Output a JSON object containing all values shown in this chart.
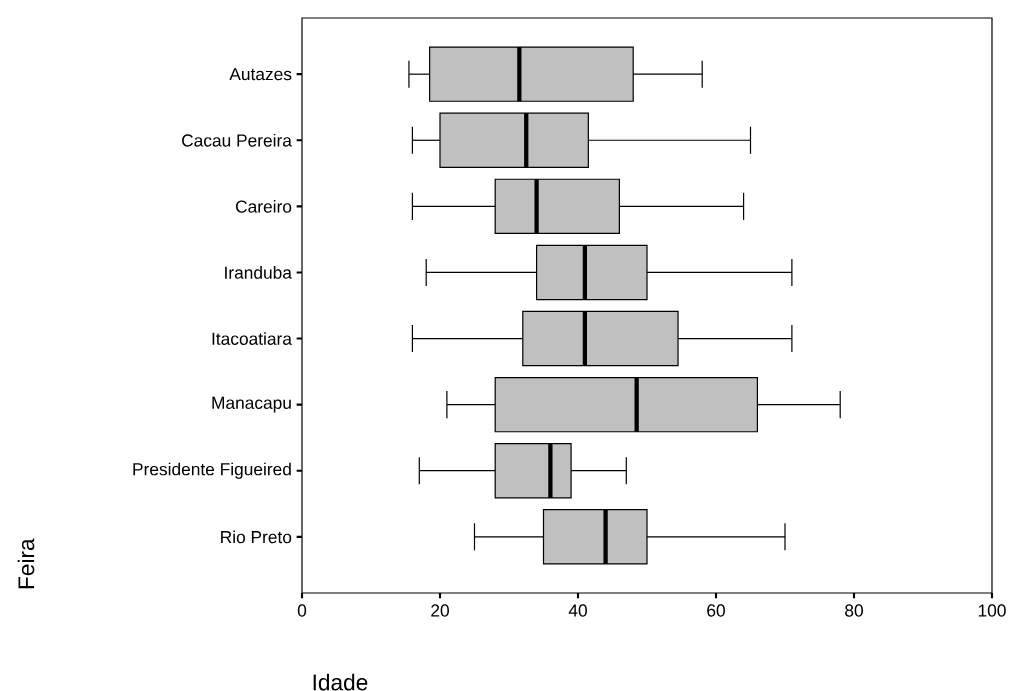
{
  "chart_data": {
    "type": "box",
    "orientation": "horizontal",
    "xlabel": "Idade",
    "ylabel": "Feira",
    "categories": [
      "Autazes",
      "Cacau Pereira",
      "Careiro",
      "Iranduba",
      "Itacoatiara",
      "Manacapu",
      "Presidente Figueired",
      "Rio Preto"
    ],
    "boxes": [
      {
        "low": 15.5,
        "q1": 18.5,
        "median": 31.5,
        "q3": 48,
        "high": 58
      },
      {
        "low": 16,
        "q1": 20,
        "median": 32.5,
        "q3": 41.5,
        "high": 65
      },
      {
        "low": 16,
        "q1": 28,
        "median": 34,
        "q3": 46,
        "high": 64
      },
      {
        "low": 18,
        "q1": 34,
        "median": 41,
        "q3": 50,
        "high": 71
      },
      {
        "low": 16,
        "q1": 32,
        "median": 41,
        "q3": 54.5,
        "high": 71
      },
      {
        "low": 21,
        "q1": 28,
        "median": 48.5,
        "q3": 66,
        "high": 78
      },
      {
        "low": 17,
        "q1": 28,
        "median": 36,
        "q3": 39,
        "high": 47
      },
      {
        "low": 25,
        "q1": 35,
        "median": 44,
        "q3": 50,
        "high": 70
      }
    ],
    "color": "#c0c0c0",
    "xlim": [
      0,
      100
    ],
    "xticks": [
      0,
      20,
      40,
      60,
      80,
      100
    ],
    "grid": false
  }
}
